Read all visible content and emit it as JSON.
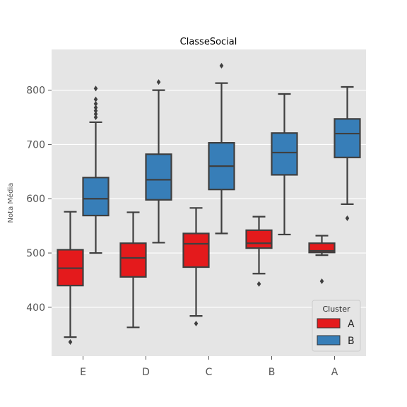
{
  "chart_data": {
    "type": "box",
    "title": "ClasseSocial",
    "xlabel": "",
    "ylabel": "Nota Média",
    "categories": [
      "E",
      "D",
      "C",
      "B",
      "A"
    ],
    "yticks": [
      400,
      500,
      600,
      700,
      800
    ],
    "ylim": [
      310,
      875
    ],
    "grid": true,
    "legend": {
      "title": "Cluster",
      "position": "bottom-right"
    },
    "series": [
      {
        "name": "A",
        "color": "#e41a1c",
        "boxes": [
          {
            "whisker_low": 345,
            "q1": 440,
            "median": 472,
            "q3": 506,
            "whisker_high": 576,
            "outliers": [
              336
            ]
          },
          {
            "whisker_low": 363,
            "q1": 456,
            "median": 491,
            "q3": 518,
            "whisker_high": 575,
            "outliers": []
          },
          {
            "whisker_low": 384,
            "q1": 474,
            "median": 517,
            "q3": 536,
            "whisker_high": 583,
            "outliers": [
              370
            ]
          },
          {
            "whisker_low": 462,
            "q1": 509,
            "median": 518,
            "q3": 542,
            "whisker_high": 567,
            "outliers": [
              443
            ]
          },
          {
            "whisker_low": 496,
            "q1": 501,
            "median": 504,
            "q3": 518,
            "whisker_high": 532,
            "outliers": [
              448
            ]
          }
        ]
      },
      {
        "name": "B",
        "color": "#377eb8",
        "boxes": [
          {
            "whisker_low": 500,
            "q1": 569,
            "median": 600,
            "q3": 639,
            "whisker_high": 741,
            "outliers": [
              750,
              756,
              762,
              768,
              775,
              783,
              803
            ]
          },
          {
            "whisker_low": 519,
            "q1": 598,
            "median": 635,
            "q3": 682,
            "whisker_high": 800,
            "outliers": [
              815
            ]
          },
          {
            "whisker_low": 536,
            "q1": 617,
            "median": 660,
            "q3": 703,
            "whisker_high": 813,
            "outliers": [
              845
            ]
          },
          {
            "whisker_low": 534,
            "q1": 644,
            "median": 685,
            "q3": 721,
            "whisker_high": 793,
            "outliers": []
          },
          {
            "whisker_low": 590,
            "q1": 676,
            "median": 720,
            "q3": 747,
            "whisker_high": 806,
            "outliers": [
              564
            ]
          }
        ]
      }
    ]
  }
}
